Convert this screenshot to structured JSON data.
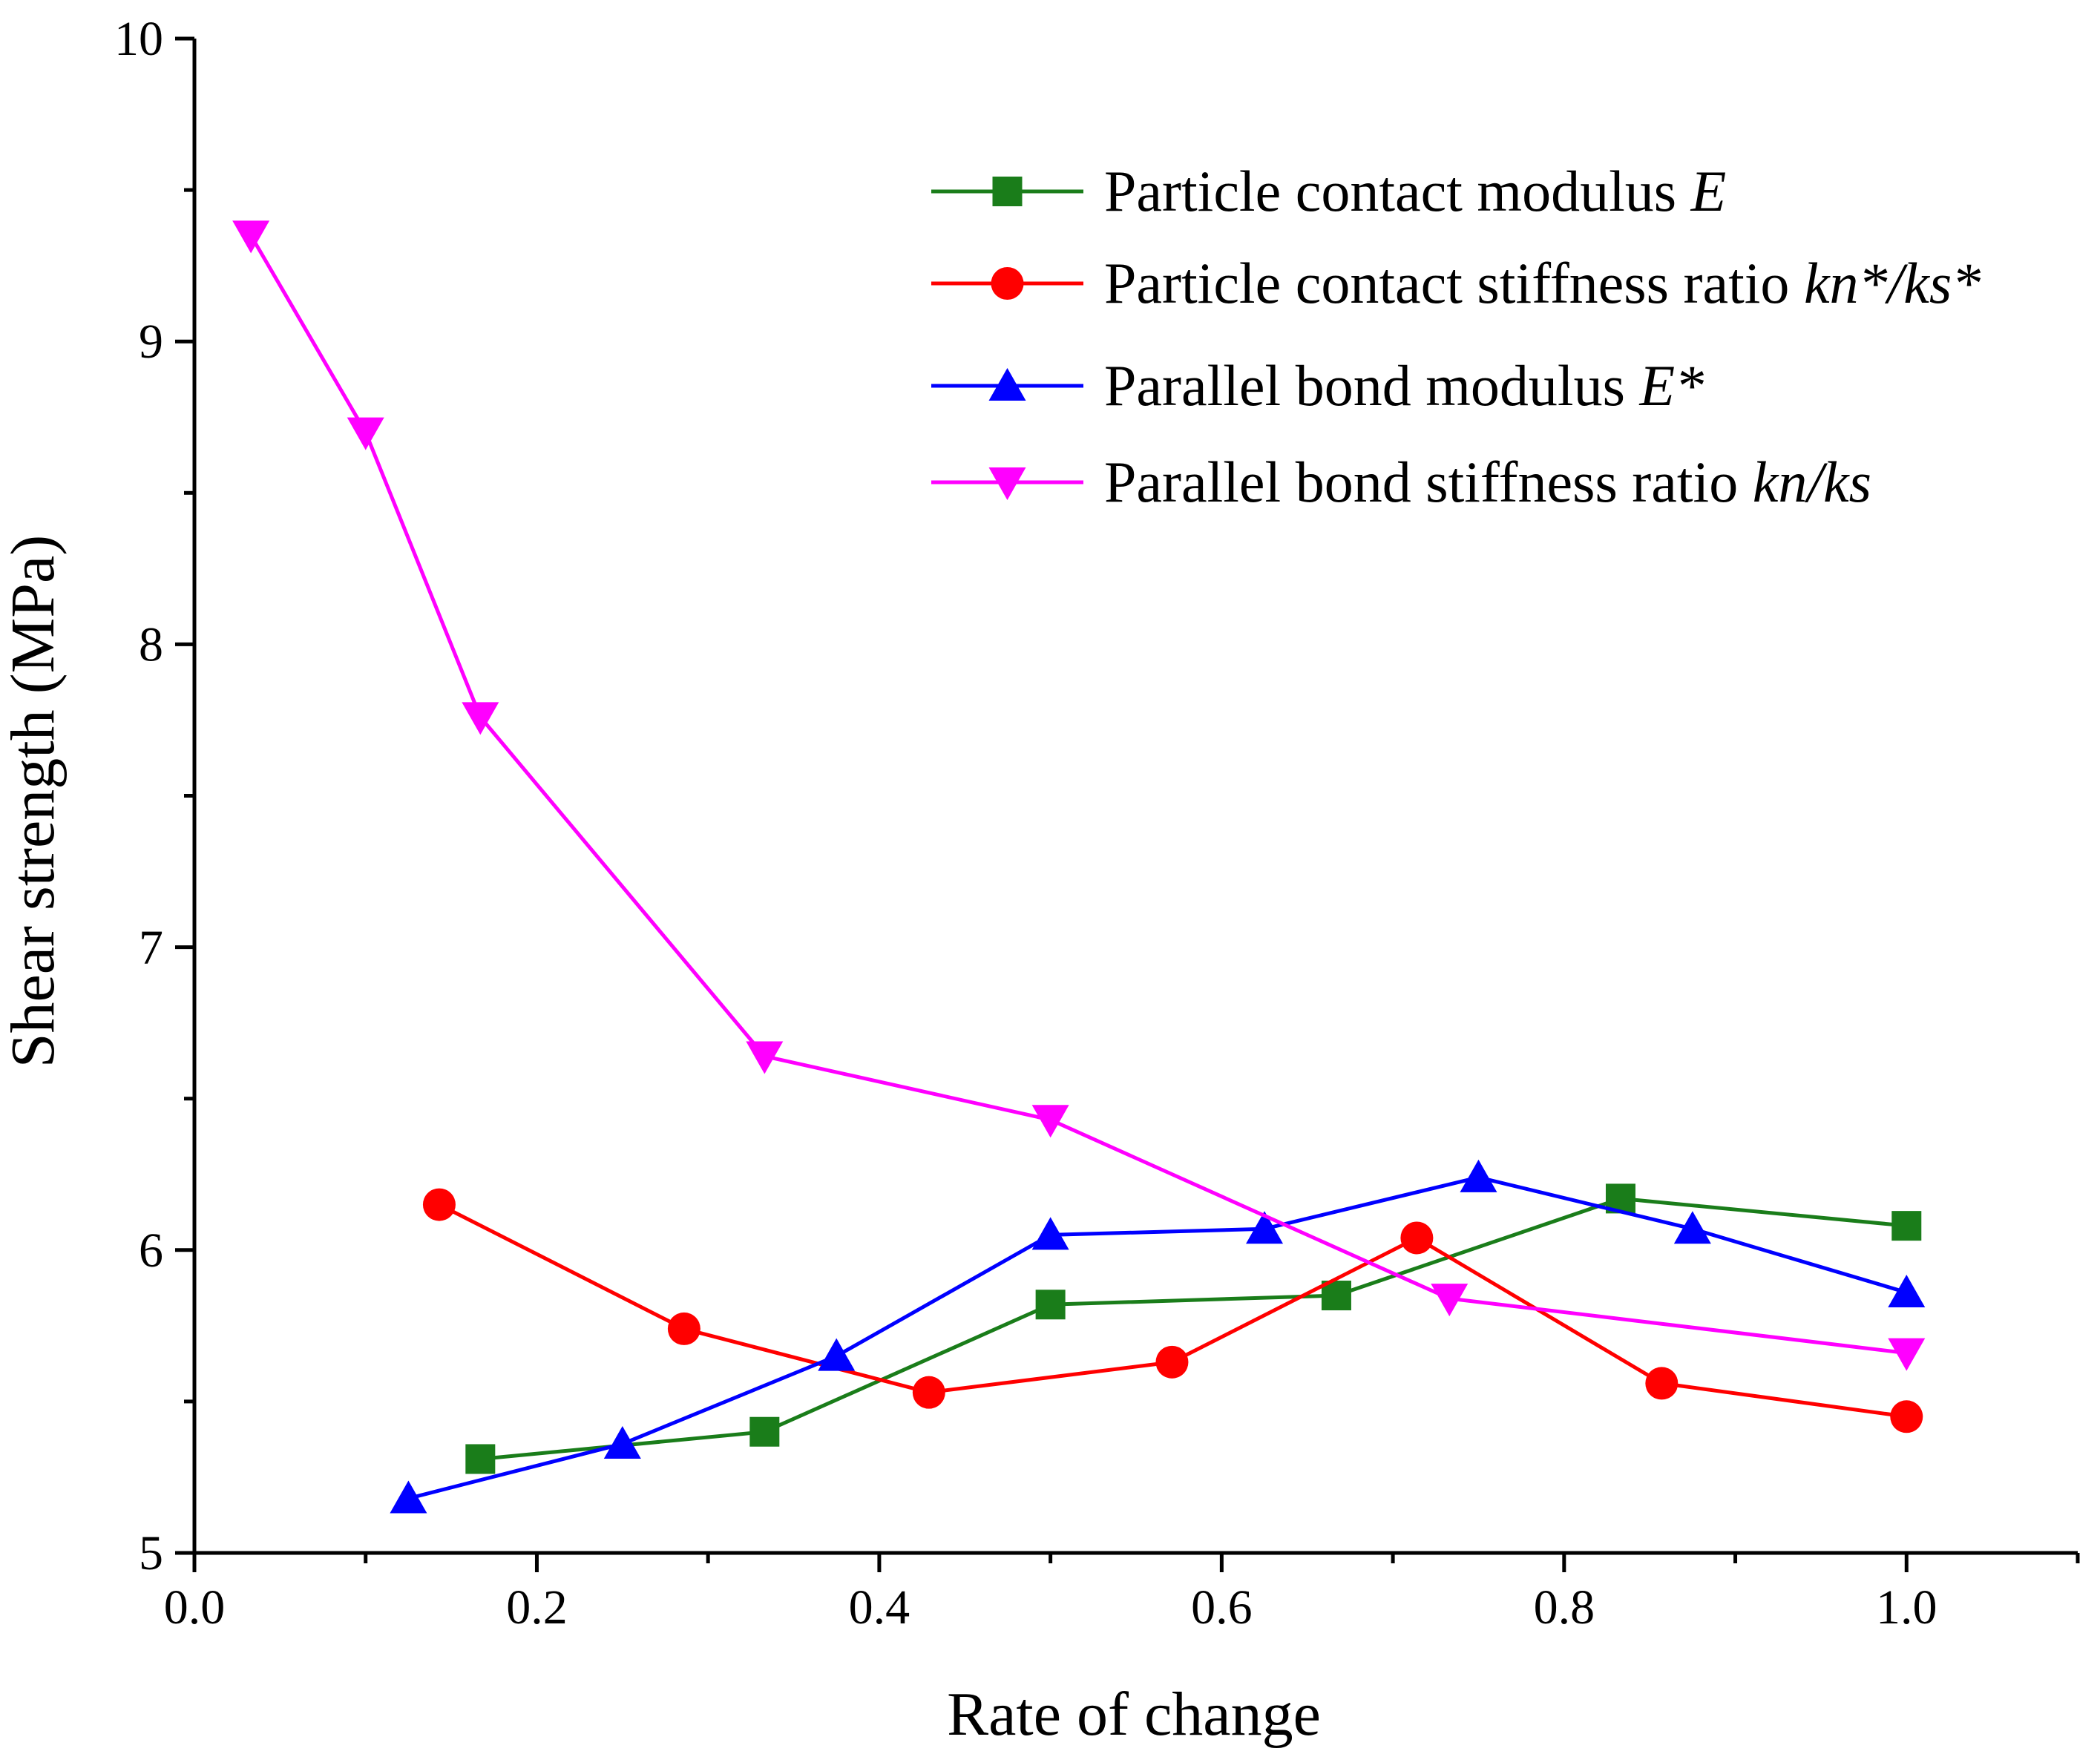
{
  "chart_data": {
    "type": "line",
    "xlabel": "Rate of change",
    "ylabel": "Shear strength (MPa)",
    "xlim": [
      0.0,
      1.1
    ],
    "ylim": [
      5,
      10
    ],
    "x_ticks": [
      0.0,
      0.2,
      0.4,
      0.6,
      0.8,
      1.0
    ],
    "x_tick_labels": [
      "0.0",
      "0.2",
      "0.4",
      "0.6",
      "0.8",
      "1.0"
    ],
    "x_minor_ticks": [
      0.1,
      0.3,
      0.5,
      0.7,
      0.9,
      1.1
    ],
    "y_ticks": [
      5,
      6,
      7,
      8,
      9,
      10
    ],
    "y_tick_labels": [
      "5",
      "6",
      "7",
      "8",
      "9",
      "10"
    ],
    "y_minor_ticks": [
      5.5,
      6.5,
      7.5,
      8.5,
      9.5
    ],
    "grid": false,
    "legend_position": "top-right",
    "series": [
      {
        "name": "Particle contact modulus E",
        "label_text": "Particle contact modulus ",
        "label_symbol": "E",
        "color": "#1a7d1a",
        "marker": "square",
        "x": [
          0.167,
          0.333,
          0.5,
          0.667,
          0.833,
          1.0
        ],
        "y": [
          5.31,
          5.4,
          5.82,
          5.85,
          6.17,
          6.08
        ]
      },
      {
        "name": "Particle contact stiffness ratio kn*/ks*",
        "label_text": "Particle contact stiffness ratio ",
        "label_symbol": "kn*/ks*",
        "color": "#ff0000",
        "marker": "circle",
        "x": [
          0.143,
          0.286,
          0.429,
          0.571,
          0.714,
          0.857,
          1.0
        ],
        "y": [
          6.15,
          5.74,
          5.53,
          5.63,
          6.04,
          5.56,
          5.45
        ]
      },
      {
        "name": "Parallel bond modulus E*",
        "label_text": "Parallel bond modulus ",
        "label_symbol": "E*",
        "color": "#0000ff",
        "marker": "triangle-up",
        "x": [
          0.125,
          0.25,
          0.375,
          0.5,
          0.625,
          0.75,
          0.875,
          1.0
        ],
        "y": [
          5.18,
          5.36,
          5.65,
          6.05,
          6.07,
          6.24,
          6.07,
          5.86
        ]
      },
      {
        "name": "Parallel bond stiffness ratio kn/ks",
        "label_text": "Parallel bond stiffness ratio ",
        "label_symbol": "kn/ks",
        "color": "#ff00ff",
        "marker": "triangle-down",
        "x": [
          0.033,
          0.1,
          0.167,
          0.333,
          0.5,
          0.733,
          1.0
        ],
        "y": [
          9.35,
          8.7,
          7.76,
          6.64,
          6.43,
          5.84,
          5.66
        ]
      }
    ]
  }
}
